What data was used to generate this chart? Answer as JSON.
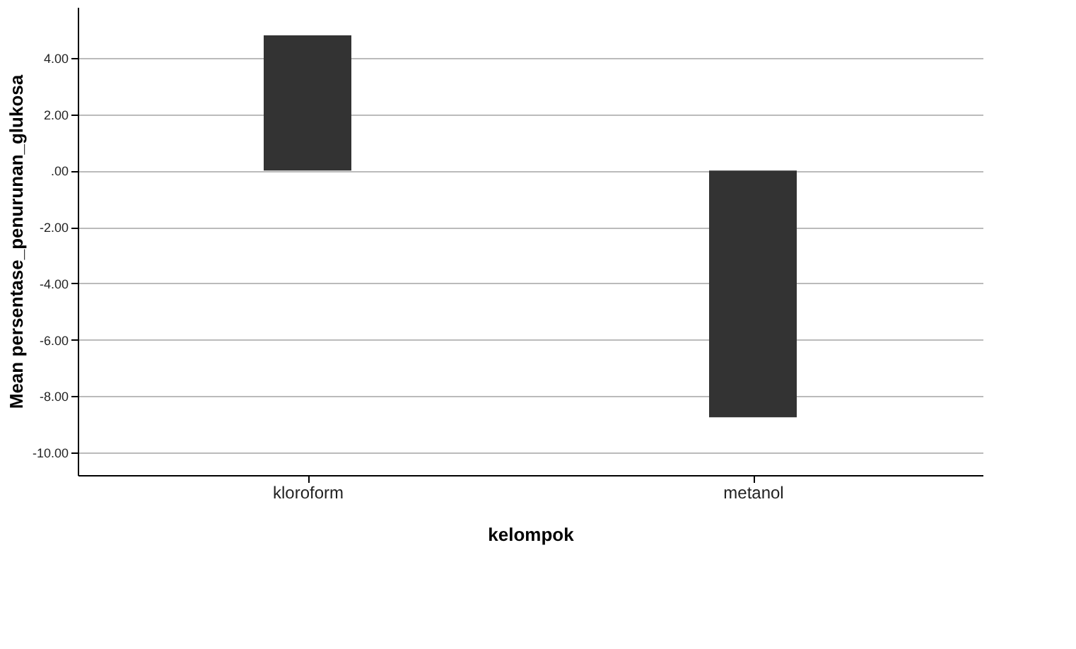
{
  "chart_data": {
    "type": "bar",
    "xlabel": "kelompok",
    "ylabel": "Mean persentase_penurunan_glukosa",
    "categories": [
      "kloroform",
      "metanol"
    ],
    "values": [
      4.8,
      -8.75
    ],
    "color": "#333333",
    "ylim": [
      -10.8,
      5.8
    ],
    "yticks": [
      {
        "value": 4,
        "label": "4.00"
      },
      {
        "value": 2,
        "label": "2.00"
      },
      {
        "value": 0,
        "label": ".00"
      },
      {
        "value": -2,
        "label": "-2.00"
      },
      {
        "value": -4,
        "label": "-4.00"
      },
      {
        "value": -6,
        "label": "-6.00"
      },
      {
        "value": -8,
        "label": "-8.00"
      },
      {
        "value": -10,
        "label": "-10.00"
      }
    ],
    "grid": "y"
  }
}
